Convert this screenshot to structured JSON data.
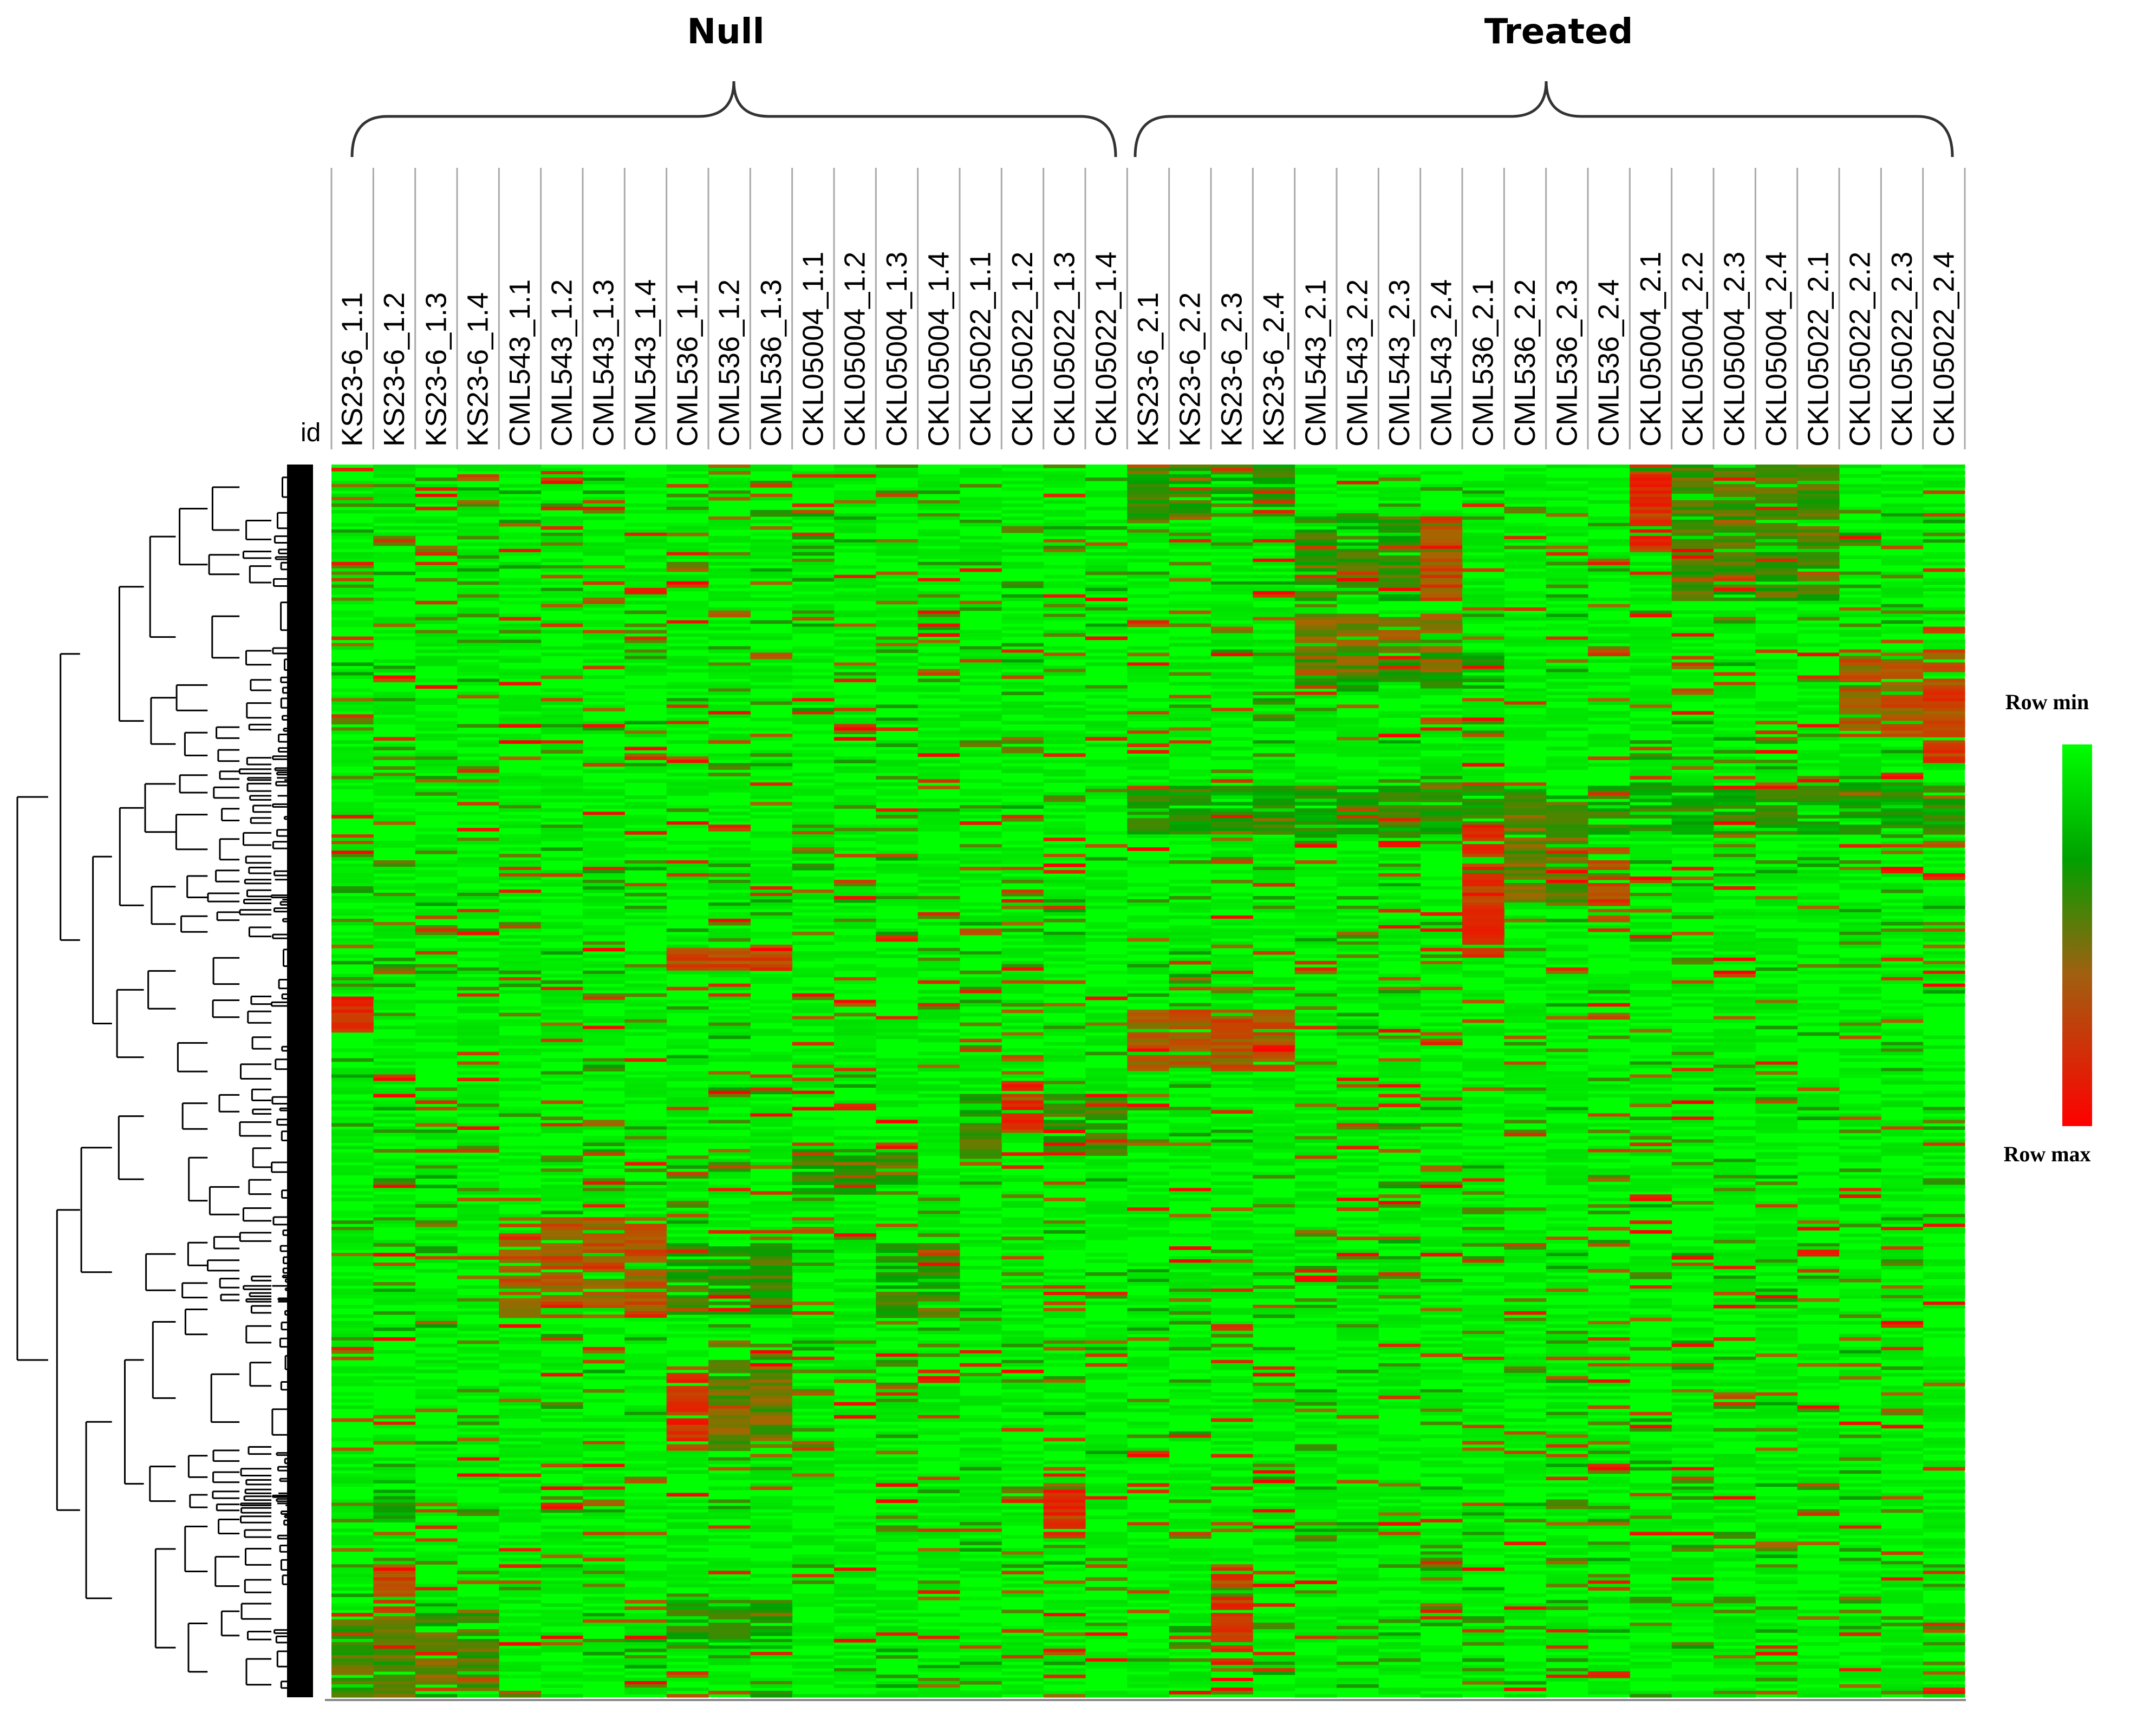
{
  "chart_data": {
    "type": "heatmap",
    "title": "",
    "groups": [
      {
        "name": "Null",
        "columns": [
          "KS23-6_1.1",
          "KS23-6_1.2",
          "KS23-6_1.3",
          "KS23-6_1.4",
          "CML543_1.1",
          "CML543_1.2",
          "CML543_1.3",
          "CML543_1.4",
          "CML536_1.1",
          "CML536_1.2",
          "CML536_1.3",
          "CKL05004_1.1",
          "CKL05004_1.2",
          "CKL05004_1.3",
          "CKL05004_1.4",
          "CKL05022_1.1",
          "CKL05022_1.2",
          "CKL05022_1.3",
          "CKL05022_1.4"
        ]
      },
      {
        "name": "Treated",
        "columns": [
          "KS23-6_2.1",
          "KS23-6_2.2",
          "KS23-6_2.3",
          "KS23-6_2.4",
          "CML543_2.1",
          "CML543_2.2",
          "CML543_2.3",
          "CML543_2.4",
          "CML536_2.1",
          "CML536_2.2",
          "CML536_2.3",
          "CML536_2.4",
          "CKL05004_2.1",
          "CKL05004_2.2",
          "CKL05004_2.3",
          "CKL05004_2.4",
          "CKL05022_2.1",
          "CKL05022_2.2",
          "CKL05022_2.3",
          "CKL05022_2.4"
        ]
      }
    ],
    "row_header": "id",
    "color_scale": {
      "min_label": "Row min",
      "max_label": "Row max",
      "min_color": "#00ff00",
      "mid_color": "#00a000",
      "max_color": "#ff0000"
    },
    "blocks": [
      {
        "cols": [
          19,
          20,
          21,
          22
        ],
        "rows": [
          0.0,
          0.04
        ],
        "level": 0.55
      },
      {
        "cols": [
          31
        ],
        "rows": [
          0.0,
          0.07
        ],
        "level": 0.95
      },
      {
        "cols": [
          32,
          33,
          34,
          35
        ],
        "rows": [
          0.0,
          0.11
        ],
        "level": 0.6
      },
      {
        "cols": [
          23,
          24,
          25,
          26
        ],
        "rows": [
          0.04,
          0.11
        ],
        "level": 0.55
      },
      {
        "cols": [
          26
        ],
        "rows": [
          0.04,
          0.11
        ],
        "level": 0.85
      },
      {
        "cols": [
          23,
          24,
          25,
          26
        ],
        "rows": [
          0.12,
          0.17
        ],
        "level": 0.7
      },
      {
        "cols": [
          36,
          37,
          38
        ],
        "rows": [
          0.15,
          0.22
        ],
        "level": 0.8
      },
      {
        "cols": [
          38
        ],
        "rows": [
          0.18,
          0.24
        ],
        "level": 0.9
      },
      {
        "cols": [
          23,
          24,
          25,
          26,
          27
        ],
        "rows": [
          0.15,
          0.18
        ],
        "level": 0.45
      },
      {
        "cols": [
          19,
          20,
          21,
          22,
          23,
          24,
          25,
          26,
          27,
          28,
          29,
          30,
          31,
          32,
          33,
          34,
          35,
          36,
          37,
          38
        ],
        "rows": [
          0.26,
          0.3
        ],
        "level": 0.5
      },
      {
        "cols": [
          27
        ],
        "rows": [
          0.29,
          0.4
        ],
        "level": 0.95
      },
      {
        "cols": [
          28,
          29
        ],
        "rows": [
          0.27,
          0.36
        ],
        "level": 0.65
      },
      {
        "cols": [
          30
        ],
        "rows": [
          0.31,
          0.38
        ],
        "level": 0.9
      },
      {
        "cols": [
          8,
          9,
          10
        ],
        "rows": [
          0.39,
          0.41
        ],
        "level": 0.85
      },
      {
        "cols": [
          0
        ],
        "rows": [
          0.43,
          0.46
        ],
        "level": 0.95
      },
      {
        "cols": [
          19,
          20,
          21,
          22
        ],
        "rows": [
          0.44,
          0.49
        ],
        "level": 0.8
      },
      {
        "cols": [
          16
        ],
        "rows": [
          0.5,
          0.54
        ],
        "level": 0.95
      },
      {
        "cols": [
          15,
          17,
          18
        ],
        "rows": [
          0.51,
          0.56
        ],
        "level": 0.55
      },
      {
        "cols": [
          11,
          12,
          13
        ],
        "rows": [
          0.56,
          0.59
        ],
        "level": 0.55
      },
      {
        "cols": [
          4,
          5,
          6,
          7
        ],
        "rows": [
          0.61,
          0.69
        ],
        "level": 0.8
      },
      {
        "cols": [
          8,
          9,
          10,
          13,
          14
        ],
        "rows": [
          0.63,
          0.69
        ],
        "level": 0.55
      },
      {
        "cols": [
          8
        ],
        "rows": [
          0.73,
          0.8
        ],
        "level": 0.95
      },
      {
        "cols": [
          9,
          10
        ],
        "rows": [
          0.72,
          0.8
        ],
        "level": 0.65
      },
      {
        "cols": [
          17
        ],
        "rows": [
          0.83,
          0.87
        ],
        "level": 0.95
      },
      {
        "cols": [
          1
        ],
        "rows": [
          0.82,
          0.86
        ],
        "level": 0.45
      },
      {
        "cols": [
          1
        ],
        "rows": [
          0.89,
          0.93
        ],
        "level": 0.85
      },
      {
        "cols": [
          21
        ],
        "rows": [
          0.89,
          0.97
        ],
        "level": 0.9
      },
      {
        "cols": [
          0,
          1,
          2,
          3
        ],
        "rows": [
          0.93,
          1.0
        ],
        "level": 0.6
      },
      {
        "cols": [
          8,
          9,
          10
        ],
        "rows": [
          0.92,
          0.96
        ],
        "level": 0.5
      }
    ]
  }
}
